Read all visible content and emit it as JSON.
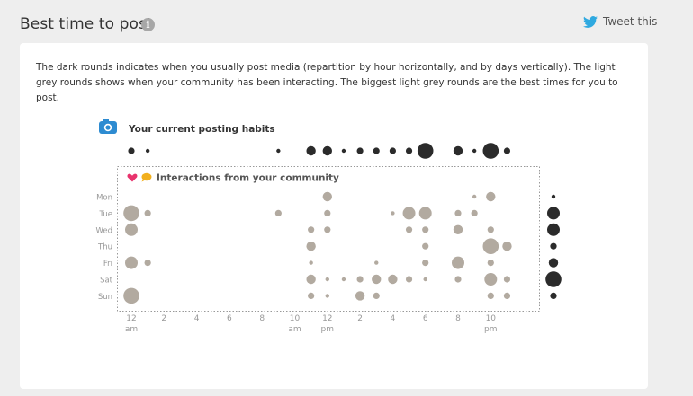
{
  "header": {
    "title": "Best time to post",
    "info_icon": "info-icon"
  },
  "tweet": {
    "label": "Tweet this",
    "icon": "twitter-bird-icon",
    "color": "#2fa9e0"
  },
  "description": "The dark rounds indicates when you usually post media (repartition by hour horizontally, and by days vertically). The light grey rounds shows when your community has been interacting. The biggest light grey rounds are the best times for you to post.",
  "chart_data": {
    "type": "scatter",
    "posting_title": "Your current posting habits",
    "interactions_title": "Interactions from your community",
    "colors": {
      "posting": "#2b2b2b",
      "interaction": "#b2aaa0",
      "heart": "#e8336d",
      "bubble": "#f2b01e",
      "camera": "#2d8bd1"
    },
    "days": [
      "Mon",
      "Tue",
      "Wed",
      "Thu",
      "Fri",
      "Sat",
      "Sun"
    ],
    "x_tick_labels": [
      {
        "hour": 0,
        "label": "12",
        "sub": "am"
      },
      {
        "hour": 2,
        "label": "2",
        "sub": ""
      },
      {
        "hour": 4,
        "label": "4",
        "sub": ""
      },
      {
        "hour": 6,
        "label": "6",
        "sub": ""
      },
      {
        "hour": 8,
        "label": "8",
        "sub": ""
      },
      {
        "hour": 10,
        "label": "10",
        "sub": "am"
      },
      {
        "hour": 12,
        "label": "12",
        "sub": "pm"
      },
      {
        "hour": 14,
        "label": "2",
        "sub": ""
      },
      {
        "hour": 16,
        "label": "4",
        "sub": ""
      },
      {
        "hour": 18,
        "label": "6",
        "sub": ""
      },
      {
        "hour": 20,
        "label": "8",
        "sub": ""
      },
      {
        "hour": 22,
        "label": "10",
        "sub": "pm"
      }
    ],
    "posting_by_hour": [
      {
        "hour": 0,
        "size": 2
      },
      {
        "hour": 1,
        "size": 1
      },
      {
        "hour": 9,
        "size": 1
      },
      {
        "hour": 11,
        "size": 3
      },
      {
        "hour": 12,
        "size": 3
      },
      {
        "hour": 13,
        "size": 1
      },
      {
        "hour": 14,
        "size": 2
      },
      {
        "hour": 15,
        "size": 2
      },
      {
        "hour": 16,
        "size": 2
      },
      {
        "hour": 17,
        "size": 2
      },
      {
        "hour": 18,
        "size": 5
      },
      {
        "hour": 20,
        "size": 3
      },
      {
        "hour": 21,
        "size": 1
      },
      {
        "hour": 22,
        "size": 5
      },
      {
        "hour": 23,
        "size": 2
      }
    ],
    "posting_by_day": [
      {
        "day": "Mon",
        "size": 1
      },
      {
        "day": "Tue",
        "size": 4
      },
      {
        "day": "Wed",
        "size": 4
      },
      {
        "day": "Thu",
        "size": 2
      },
      {
        "day": "Fri",
        "size": 3
      },
      {
        "day": "Sat",
        "size": 5
      },
      {
        "day": "Sun",
        "size": 2
      }
    ],
    "interactions": [
      {
        "day": "Mon",
        "hour": 12,
        "size": 3
      },
      {
        "day": "Mon",
        "hour": 21,
        "size": 1
      },
      {
        "day": "Mon",
        "hour": 22,
        "size": 3
      },
      {
        "day": "Tue",
        "hour": 0,
        "size": 5
      },
      {
        "day": "Tue",
        "hour": 1,
        "size": 2
      },
      {
        "day": "Tue",
        "hour": 9,
        "size": 2
      },
      {
        "day": "Tue",
        "hour": 12,
        "size": 2
      },
      {
        "day": "Tue",
        "hour": 16,
        "size": 1
      },
      {
        "day": "Tue",
        "hour": 17,
        "size": 4
      },
      {
        "day": "Tue",
        "hour": 18,
        "size": 4
      },
      {
        "day": "Tue",
        "hour": 20,
        "size": 2
      },
      {
        "day": "Tue",
        "hour": 21,
        "size": 2
      },
      {
        "day": "Wed",
        "hour": 0,
        "size": 4
      },
      {
        "day": "Wed",
        "hour": 11,
        "size": 2
      },
      {
        "day": "Wed",
        "hour": 12,
        "size": 2
      },
      {
        "day": "Wed",
        "hour": 17,
        "size": 2
      },
      {
        "day": "Wed",
        "hour": 18,
        "size": 2
      },
      {
        "day": "Wed",
        "hour": 20,
        "size": 3
      },
      {
        "day": "Wed",
        "hour": 22,
        "size": 2
      },
      {
        "day": "Thu",
        "hour": 11,
        "size": 3
      },
      {
        "day": "Thu",
        "hour": 18,
        "size": 2
      },
      {
        "day": "Thu",
        "hour": 22,
        "size": 5
      },
      {
        "day": "Thu",
        "hour": 23,
        "size": 3
      },
      {
        "day": "Fri",
        "hour": 0,
        "size": 4
      },
      {
        "day": "Fri",
        "hour": 1,
        "size": 2
      },
      {
        "day": "Fri",
        "hour": 11,
        "size": 1
      },
      {
        "day": "Fri",
        "hour": 15,
        "size": 1
      },
      {
        "day": "Fri",
        "hour": 18,
        "size": 2
      },
      {
        "day": "Fri",
        "hour": 20,
        "size": 4
      },
      {
        "day": "Fri",
        "hour": 22,
        "size": 2
      },
      {
        "day": "Sat",
        "hour": 11,
        "size": 3
      },
      {
        "day": "Sat",
        "hour": 12,
        "size": 1
      },
      {
        "day": "Sat",
        "hour": 13,
        "size": 1
      },
      {
        "day": "Sat",
        "hour": 14,
        "size": 2
      },
      {
        "day": "Sat",
        "hour": 15,
        "size": 3
      },
      {
        "day": "Sat",
        "hour": 16,
        "size": 3
      },
      {
        "day": "Sat",
        "hour": 17,
        "size": 2
      },
      {
        "day": "Sat",
        "hour": 18,
        "size": 1
      },
      {
        "day": "Sat",
        "hour": 20,
        "size": 2
      },
      {
        "day": "Sat",
        "hour": 22,
        "size": 4
      },
      {
        "day": "Sat",
        "hour": 23,
        "size": 2
      },
      {
        "day": "Sun",
        "hour": 0,
        "size": 5
      },
      {
        "day": "Sun",
        "hour": 11,
        "size": 2
      },
      {
        "day": "Sun",
        "hour": 12,
        "size": 1
      },
      {
        "day": "Sun",
        "hour": 14,
        "size": 3
      },
      {
        "day": "Sun",
        "hour": 15,
        "size": 2
      },
      {
        "day": "Sun",
        "hour": 22,
        "size": 2
      },
      {
        "day": "Sun",
        "hour": 23,
        "size": 2
      }
    ]
  }
}
